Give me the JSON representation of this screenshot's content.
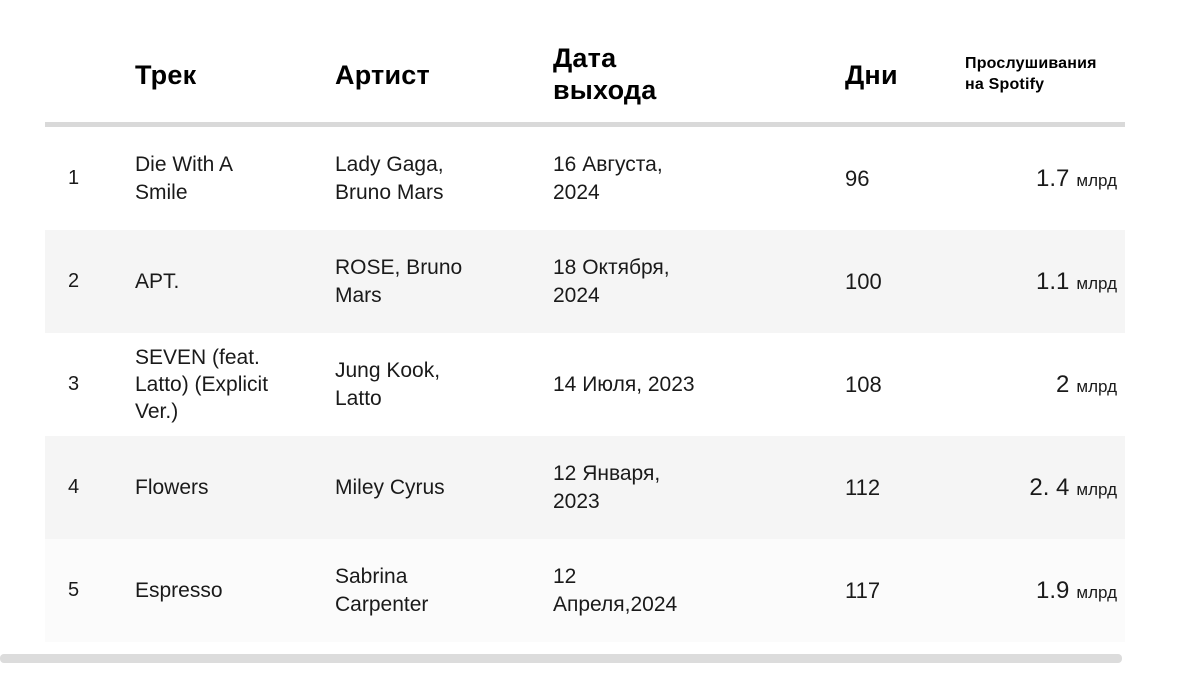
{
  "colors": {
    "divider": "#d9d9d9",
    "row_alt_bg": "#f5f5f5",
    "row_last_bg": "#fbfbfb",
    "text": "#1a1a1a",
    "scrollbar": "#dcdcdc"
  },
  "table": {
    "headers": {
      "track": "Трек",
      "artist": "Артист",
      "release_date": "Дата\nвыхода",
      "days": "Дни",
      "streams": "Прослушивания на Spotify"
    },
    "rows": [
      {
        "index": "1",
        "track": "Die With A Smile",
        "artist": "Lady Gaga, Bruno Mars",
        "date": "16 Августа, 2024",
        "days": "96",
        "streams_value": "1.7",
        "streams_unit": "млрд"
      },
      {
        "index": "2",
        "track": "APT.",
        "artist": "ROSE, Bruno Mars",
        "date": "18 Октября, 2024",
        "days": "100",
        "streams_value": "1.1",
        "streams_unit": "млрд"
      },
      {
        "index": "3",
        "track": "SEVEN (feat. Latto) (Explicit Ver.)",
        "artist": "Jung Kook, Latto",
        "date": "14 Июля, 2023",
        "days": "108",
        "streams_value": "2",
        "streams_unit": "млрд"
      },
      {
        "index": "4",
        "track": "Flowers",
        "artist": "Miley Cyrus",
        "date": "12 Января, 2023",
        "days": "112",
        "streams_value": "2. 4",
        "streams_unit": "млрд"
      },
      {
        "index": "5",
        "track": "Espresso",
        "artist": "Sabrina Carpenter",
        "date": "12 Апреля,2024",
        "days": "117",
        "streams_value": "1.9",
        "streams_unit": "млрд"
      }
    ]
  }
}
